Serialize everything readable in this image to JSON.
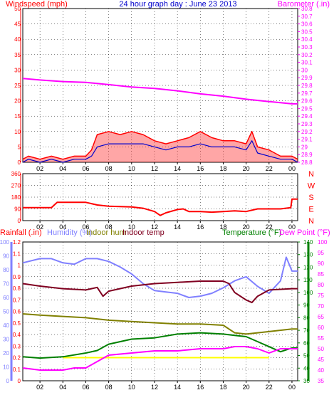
{
  "title": "24 hour graph day : June 23 2013",
  "colors": {
    "wind": "#ff0000",
    "gust_fill": "#ff0000",
    "wind_avg": "#0000cc",
    "baro": "#ff00ff",
    "dir": "#ff0000",
    "rain": "#ffff00",
    "humidity": "#8080ff",
    "indoor_hum": "#808000",
    "indoor_temp": "#800020",
    "temperature": "#008000",
    "dewpoint": "#ff00ff",
    "axis": "#000000",
    "grid": "#000000",
    "bg": "#ffffff"
  },
  "hour_labels": [
    "02",
    "04",
    "06",
    "08",
    "10",
    "12",
    "14",
    "16",
    "18",
    "20",
    "22",
    "00"
  ],
  "panel_top": {
    "left_label": "Windspeed (mph)",
    "right_label": "Barometer (.in)",
    "left_ticks": [
      "50",
      "45",
      "40",
      "35",
      "30",
      "25",
      "20",
      "15",
      "10",
      "5",
      "0"
    ],
    "right_ticks": [
      "30.8",
      "30.7",
      "30.6",
      "30.5",
      "30.4",
      "30.3",
      "30.2",
      "30.1",
      "30",
      "29.9",
      "29.8",
      "29.7",
      "29.6",
      "29.5",
      "29.4",
      "29.3",
      "29.2",
      "29.1",
      "29",
      "28.9",
      "28.8"
    ]
  },
  "panel_mid": {
    "left_ticks": [
      "360",
      "270",
      "180",
      "90",
      "0"
    ],
    "compass": [
      "N",
      "W",
      "S",
      "E",
      "N"
    ]
  },
  "panel_bottom": {
    "labels": {
      "rainfall": "Rainfall (.in)",
      "humidity": "Humidity (%)",
      "indoor_hum": "Indoor hum",
      "indoor_temp": "Indoor temp",
      "temperature": "Temperature (°F)",
      "dewpoint": "Dew Point (°F)"
    },
    "rain_ticks": [
      "1.2",
      "1.1",
      "1",
      "0.9",
      "0.8",
      "0.7",
      "0.6",
      "0.5",
      "0.4",
      "0.3",
      "0.2",
      "0.1",
      "0"
    ],
    "hum_ticks": [
      "100",
      "90",
      "80",
      "70",
      "60",
      "50",
      "40",
      "30",
      "20",
      "10",
      "0"
    ],
    "temp_ticks": [
      "140",
      "130",
      "120",
      "110",
      "100",
      "90",
      "80",
      "70",
      "60",
      "50",
      "40",
      "30"
    ],
    "dew_ticks": [
      "100",
      "95",
      "90",
      "85",
      "80",
      "75",
      "70",
      "65",
      "60",
      "55",
      "50",
      "45",
      "40",
      "35"
    ]
  },
  "chart_data": [
    {
      "type": "line",
      "ylabel": "Windspeed (mph)",
      "y2label": "Barometer (.in)",
      "x_unit": "hours",
      "xlim": [
        0.5,
        24.5
      ],
      "ylim": [
        0,
        50
      ],
      "y2lim": [
        28.8,
        30.8
      ],
      "series": [
        {
          "name": "Windspeed (mph)",
          "axis": "left",
          "x": [
            0.5,
            1,
            2,
            3,
            4,
            5,
            6,
            6.5,
            7,
            8,
            9,
            10,
            11,
            12,
            13,
            14,
            15,
            16,
            17,
            18,
            19,
            20,
            20.5,
            21,
            22,
            23,
            24,
            24.5
          ],
          "values": [
            1,
            2,
            1,
            2,
            1,
            2,
            2,
            4,
            9,
            10,
            9,
            10,
            9,
            7,
            6,
            7,
            8,
            10,
            8,
            7,
            7,
            6,
            10,
            5,
            4,
            2,
            2,
            1
          ]
        },
        {
          "name": "Average speed",
          "axis": "left",
          "x": [
            0.5,
            1,
            2,
            3,
            4,
            5,
            6,
            6.5,
            7,
            8,
            9,
            10,
            11,
            12,
            13,
            14,
            15,
            16,
            17,
            18,
            19,
            20,
            20.5,
            21,
            22,
            23,
            24,
            24.5
          ],
          "values": [
            0,
            1,
            0,
            1,
            0,
            1,
            1,
            2,
            5,
            6,
            6,
            6,
            6,
            5,
            4,
            5,
            5,
            6,
            5,
            5,
            5,
            4,
            7,
            3,
            2,
            1,
            1,
            0
          ]
        },
        {
          "name": "Barometer (.in)",
          "axis": "right",
          "x": [
            0.5,
            2,
            4,
            6,
            8,
            10,
            12,
            14,
            16,
            18,
            20,
            22,
            24,
            24.5
          ],
          "values": [
            29.89,
            29.87,
            29.85,
            29.84,
            29.81,
            29.78,
            29.76,
            29.73,
            29.69,
            29.66,
            29.62,
            29.59,
            29.56,
            29.56
          ]
        }
      ]
    },
    {
      "type": "line",
      "ylabel": "",
      "x_unit": "hours",
      "xlim": [
        0.5,
        24.5
      ],
      "ylim": [
        0,
        360
      ],
      "series": [
        {
          "name": "Wind direction",
          "x": [
            0.5,
            3,
            3.5,
            6,
            7,
            8,
            10,
            11,
            12,
            12.5,
            13,
            14,
            14.5,
            15,
            16,
            17,
            18,
            19,
            20,
            21,
            22,
            23,
            23.9,
            24,
            24.5
          ],
          "values": [
            100,
            100,
            140,
            140,
            120,
            110,
            105,
            95,
            70,
            40,
            60,
            85,
            90,
            70,
            70,
            65,
            70,
            75,
            70,
            90,
            90,
            90,
            100,
            165,
            165
          ]
        }
      ]
    },
    {
      "type": "line",
      "x_unit": "hours",
      "xlim": [
        0.5,
        24.5
      ],
      "series": [
        {
          "name": "Rainfall (.in)",
          "axis": "rain",
          "ylim": [
            0,
            1.2
          ],
          "x": [
            4,
            4.5,
            5,
            5.5,
            6,
            20.5,
            21,
            21.5,
            22
          ],
          "values": [
            0.2,
            0.2,
            0.2,
            0.2,
            0.2,
            0.2,
            0.2,
            0.2,
            0.2
          ]
        },
        {
          "name": "Humidity (%)",
          "axis": "hum",
          "ylim": [
            0,
            100
          ],
          "x": [
            0.5,
            2,
            3,
            4,
            5,
            6,
            7,
            8,
            9,
            10,
            11,
            12,
            13,
            14,
            15,
            16,
            17,
            18,
            19,
            20,
            21,
            22,
            23,
            23.5,
            24,
            24.5
          ],
          "values": [
            85,
            88,
            88,
            85,
            84,
            88,
            88,
            86,
            82,
            77,
            70,
            65,
            64,
            63,
            60,
            61,
            63,
            67,
            72,
            75,
            68,
            63,
            72,
            89,
            79,
            79
          ]
        },
        {
          "name": "Indoor hum",
          "axis": "temp",
          "ylim": [
            30,
            140
          ],
          "x": [
            0.5,
            2,
            4,
            6,
            7,
            8,
            10,
            12,
            14,
            16,
            18,
            19,
            20,
            21,
            22,
            24,
            24.5
          ],
          "values": [
            83,
            82,
            81,
            80,
            79,
            78,
            77,
            76,
            75,
            75,
            74,
            68,
            67,
            68,
            69,
            71,
            71
          ]
        },
        {
          "name": "Indoor temp",
          "axis": "temp",
          "ylim": [
            30,
            140
          ],
          "x": [
            0.5,
            2,
            4,
            6,
            7,
            7.5,
            8,
            10,
            12,
            14,
            16,
            18,
            18.5,
            19,
            20,
            20.5,
            21,
            22,
            24,
            24.5
          ],
          "values": [
            107,
            105,
            103,
            102,
            104,
            97,
            101,
            105,
            107,
            108,
            109,
            109,
            107,
            100,
            94,
            92,
            97,
            102,
            103,
            103
          ]
        },
        {
          "name": "Temperature (°F)",
          "axis": "temp",
          "ylim": [
            30,
            140
          ],
          "x": [
            0.5,
            2,
            4,
            6,
            7,
            8,
            10,
            12,
            14,
            16,
            18,
            19,
            20,
            21,
            22,
            23,
            24,
            24.5
          ],
          "values": [
            49,
            48,
            49,
            52,
            54,
            59,
            63,
            64,
            67,
            68,
            67,
            66,
            65,
            61,
            57,
            53,
            56,
            56
          ]
        },
        {
          "name": "Dew Point (°F)",
          "axis": "dew",
          "ylim": [
            35,
            100
          ],
          "x": [
            0.5,
            2,
            4,
            5,
            6,
            7,
            8,
            10,
            12,
            14,
            16,
            18,
            19,
            20,
            21,
            22,
            23,
            24,
            24.5
          ],
          "values": [
            41,
            40,
            40,
            41,
            41,
            44,
            47,
            48,
            49,
            49,
            50,
            50,
            51,
            51,
            50,
            48,
            50,
            50,
            50
          ]
        }
      ]
    }
  ]
}
